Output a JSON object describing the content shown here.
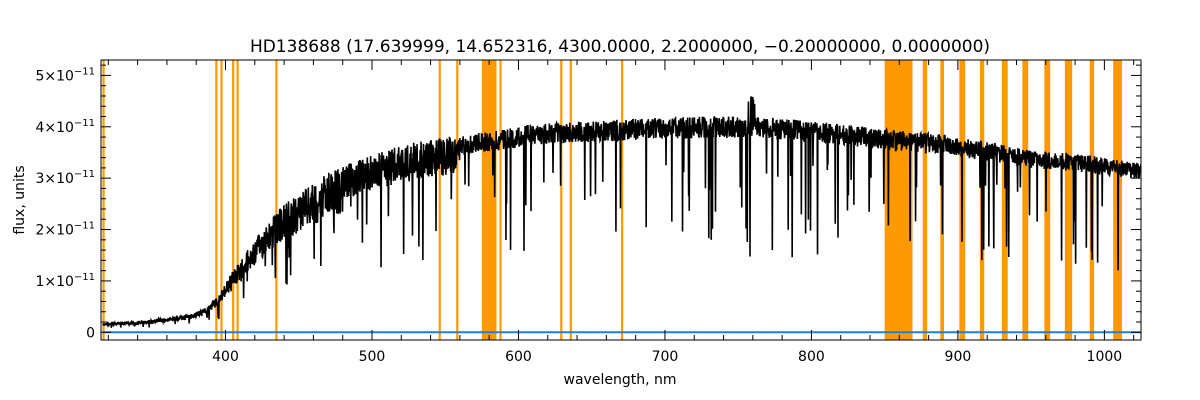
{
  "chart_data": {
    "type": "line",
    "title": "HD138688   (17.639999, 14.652316, 4300.0000, 2.2000000, −0.20000000, 0.0000000)",
    "xlabel": "wavelength, nm",
    "ylabel": "flux, units",
    "xlim": [
      315,
      1025
    ],
    "ylim": [
      -1.5e-12,
      5.3e-11
    ],
    "x_ticks": [
      400,
      500,
      600,
      700,
      800,
      900,
      1000
    ],
    "x_tick_labels": [
      "400",
      "500",
      "600",
      "700",
      "800",
      "900",
      "1000"
    ],
    "y_ticks": [
      0,
      1e-11,
      2e-11,
      3e-11,
      4e-11,
      5e-11
    ],
    "y_tick_labels": [
      {
        "mantissa": "0",
        "exponent": ""
      },
      {
        "mantissa": "1×10",
        "exponent": "−11"
      },
      {
        "mantissa": "2×10",
        "exponent": "−11"
      },
      {
        "mantissa": "3×10",
        "exponent": "−11"
      },
      {
        "mantissa": "4×10",
        "exponent": "−11"
      },
      {
        "mantissa": "5×10",
        "exponent": "−11"
      }
    ],
    "colors": {
      "spectrum": "#000000",
      "error": "#1f7fe0",
      "mask": "#ff9900"
    },
    "series": [
      {
        "role": "spectrum",
        "envelope_x": [
          316,
          330,
          345,
          360,
          375,
          385,
          395,
          405,
          415,
          425,
          440,
          455,
          470,
          490,
          510,
          530,
          550,
          565,
          575,
          580,
          590,
          610,
          640,
          670,
          700,
          730,
          760,
          790,
          820,
          850,
          870,
          890,
          910,
          930,
          950,
          970,
          990,
          1010,
          1025
        ],
        "envelope_y": [
          1.8e-12,
          2e-12,
          2.3e-12,
          2.8e-12,
          3.5e-12,
          4.5e-12,
          7e-12,
          1.2e-11,
          1.6e-11,
          2e-11,
          2.5e-11,
          2.8e-11,
          3.1e-11,
          3.35e-11,
          3.55e-11,
          3.7e-11,
          3.8e-11,
          3.85e-11,
          3.9e-11,
          3.9e-11,
          3.95e-11,
          4.05e-11,
          4.1e-11,
          4.15e-11,
          4.18e-11,
          4.2e-11,
          4.2e-11,
          4.15e-11,
          4.05e-11,
          3.95e-11,
          3.9e-11,
          3.85e-11,
          3.75e-11,
          3.65e-11,
          3.55e-11,
          3.5e-11,
          3.45e-11,
          3.35e-11,
          3.3e-11
        ]
      },
      {
        "role": "error",
        "x": [
          316,
          1025
        ],
        "y": [
          0,
          0
        ]
      }
    ],
    "mask_bands": [
      [
        316,
        317.5
      ],
      [
        393,
        394.5
      ],
      [
        396.5,
        398
      ],
      [
        404.5,
        406
      ],
      [
        407.5,
        409
      ],
      [
        434,
        435.5
      ],
      [
        545.5,
        547
      ],
      [
        557.5,
        559
      ],
      [
        575,
        585
      ],
      [
        587,
        588.5
      ],
      [
        628.5,
        630
      ],
      [
        635,
        636.5
      ],
      [
        670,
        671.5
      ],
      [
        850,
        869
      ],
      [
        876,
        879
      ],
      [
        888,
        890.5
      ],
      [
        901,
        905
      ],
      [
        915,
        918
      ],
      [
        930,
        934
      ],
      [
        944,
        948
      ],
      [
        959,
        963
      ],
      [
        973,
        978
      ],
      [
        990,
        993
      ],
      [
        1006,
        1012
      ]
    ]
  }
}
